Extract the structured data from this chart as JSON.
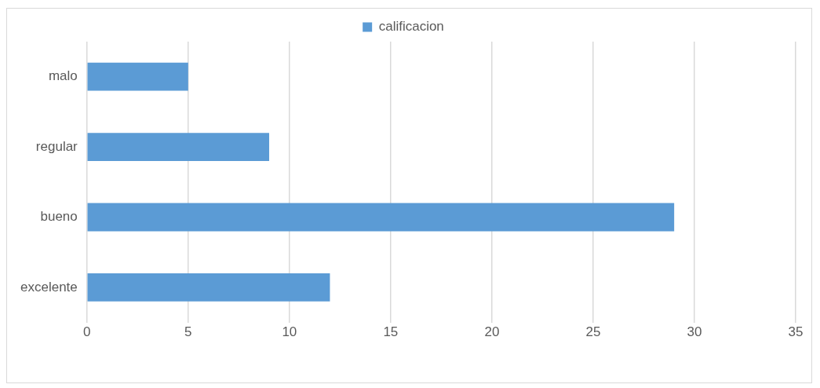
{
  "chart_data": {
    "type": "bar",
    "orientation": "horizontal",
    "categories": [
      "malo",
      "regular",
      "bueno",
      "excelente"
    ],
    "series": [
      {
        "name": "calificacion",
        "color": "#5b9bd5",
        "values": [
          5,
          9,
          29,
          12
        ]
      }
    ],
    "xlim": [
      0,
      35
    ],
    "xticks": [
      0,
      5,
      10,
      15,
      20,
      25,
      30,
      35
    ],
    "grid": "x",
    "legend": "top"
  }
}
